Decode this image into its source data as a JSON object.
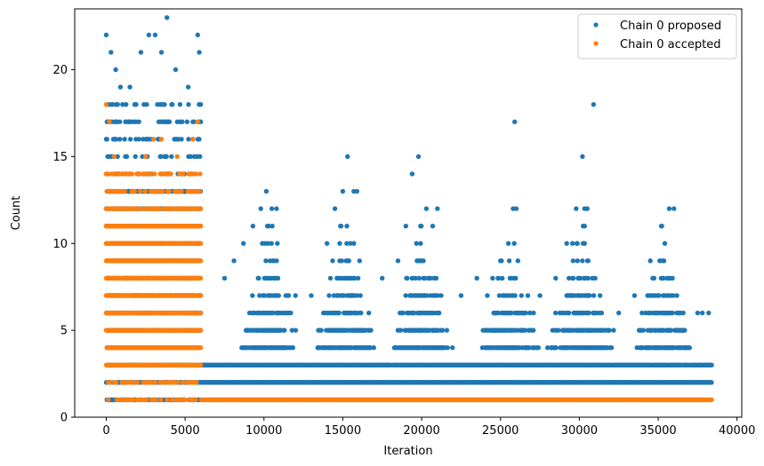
{
  "chart_data": {
    "type": "scatter",
    "title": "",
    "xlabel": "Iteration",
    "ylabel": "Count",
    "xlim": [
      -2000,
      40300
    ],
    "ylim": [
      0,
      23.5
    ],
    "xticks": [
      0,
      5000,
      10000,
      15000,
      20000,
      25000,
      30000,
      35000,
      40000
    ],
    "yticks": [
      0,
      5,
      10,
      15,
      20
    ],
    "grid": false,
    "legend": {
      "location": "top-right"
    },
    "series": [
      {
        "name": "Chain 0 proposed",
        "color": "#1f77b4",
        "description_points": [
          [
            0,
            22
          ],
          [
            300,
            21
          ],
          [
            600,
            20
          ],
          [
            900,
            19
          ],
          [
            1500,
            19
          ],
          [
            2200,
            21
          ],
          [
            2700,
            22
          ],
          [
            3100,
            22
          ],
          [
            3500,
            21
          ],
          [
            3850,
            23
          ],
          [
            4400,
            20
          ],
          [
            5200,
            19
          ],
          [
            5800,
            22
          ],
          [
            5900,
            21
          ],
          [
            7500,
            8
          ],
          [
            8100,
            9
          ],
          [
            8700,
            10
          ],
          [
            9300,
            11
          ],
          [
            9800,
            12
          ],
          [
            10150,
            13
          ],
          [
            10500,
            12
          ],
          [
            10800,
            12
          ],
          [
            11500,
            7
          ],
          [
            12000,
            7
          ],
          [
            13000,
            7
          ],
          [
            14000,
            10
          ],
          [
            14500,
            12
          ],
          [
            15000,
            13
          ],
          [
            15300,
            15
          ],
          [
            15700,
            13
          ],
          [
            15900,
            13
          ],
          [
            17500,
            8
          ],
          [
            18500,
            9
          ],
          [
            19000,
            11
          ],
          [
            19400,
            14
          ],
          [
            19800,
            15
          ],
          [
            20300,
            12
          ],
          [
            20700,
            11
          ],
          [
            21000,
            12
          ],
          [
            22500,
            7
          ],
          [
            23500,
            8
          ],
          [
            24500,
            8
          ],
          [
            25000,
            9
          ],
          [
            25500,
            10
          ],
          [
            25800,
            12
          ],
          [
            25900,
            17
          ],
          [
            26000,
            12
          ],
          [
            27500,
            7
          ],
          [
            28500,
            8
          ],
          [
            29200,
            10
          ],
          [
            29800,
            12
          ],
          [
            30200,
            15
          ],
          [
            30500,
            12
          ],
          [
            30900,
            18
          ],
          [
            32500,
            6
          ],
          [
            33500,
            7
          ],
          [
            34500,
            9
          ],
          [
            35200,
            11
          ],
          [
            35700,
            12
          ],
          [
            36000,
            12
          ],
          [
            37500,
            6
          ],
          [
            37800,
            6
          ],
          [
            38200,
            6
          ]
        ]
      },
      {
        "name": "Chain 0 accepted",
        "color": "#ff7f0e",
        "description_points": [
          [
            0,
            18
          ],
          [
            200,
            17
          ],
          [
            500,
            15
          ],
          [
            1500,
            14
          ],
          [
            2500,
            15
          ],
          [
            3000,
            16
          ],
          [
            3500,
            16
          ],
          [
            4500,
            15
          ],
          [
            5500,
            16
          ],
          [
            5800,
            17
          ]
        ]
      }
    ]
  }
}
